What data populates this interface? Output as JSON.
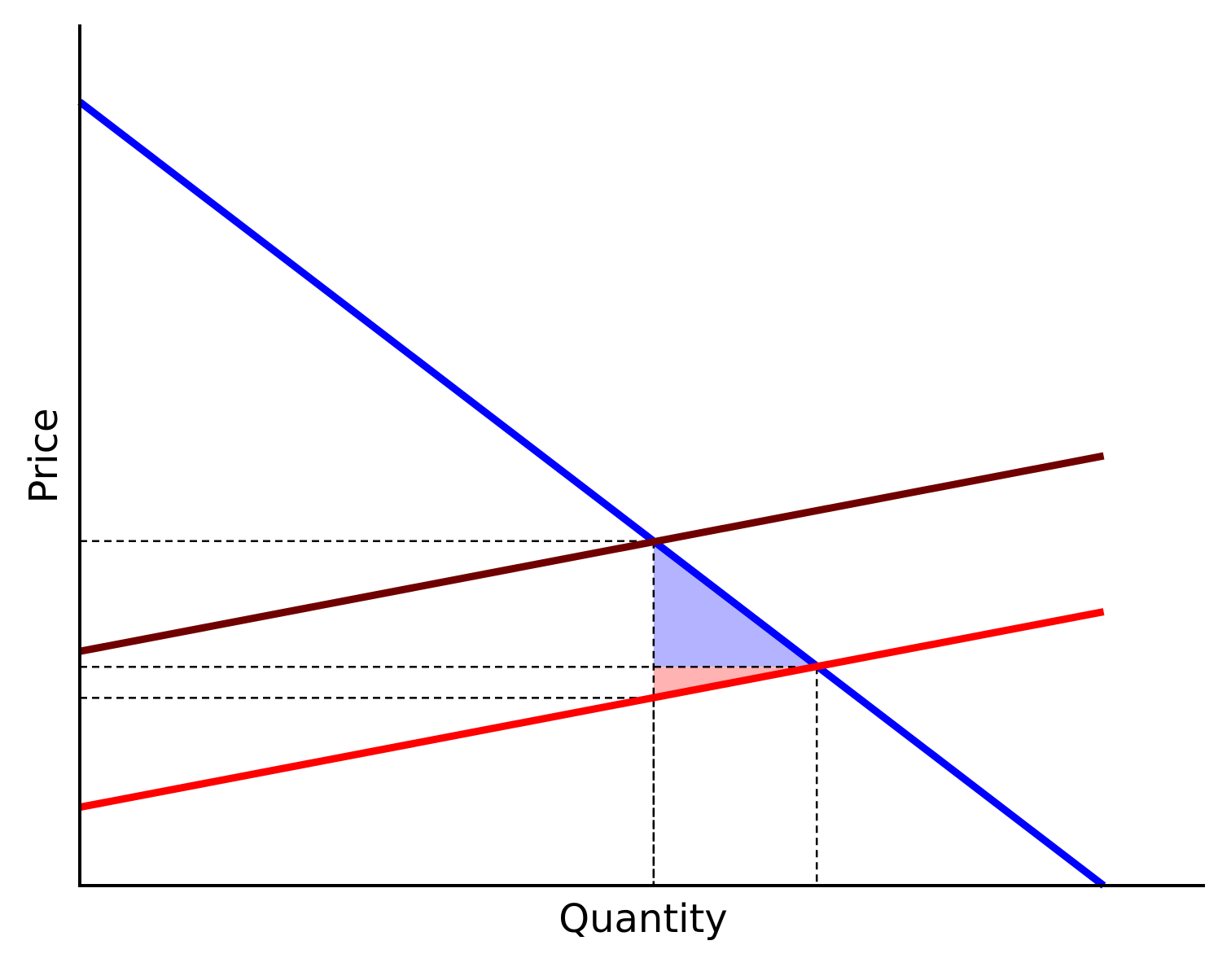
{
  "chart_data": {
    "type": "line",
    "xlabel": "Quantity",
    "ylabel": "Price",
    "xlim": [
      0,
      100
    ],
    "ylim": [
      0,
      100
    ],
    "series": [
      {
        "color": "#0000ff",
        "x": [
          0,
          91
        ],
        "values": [
          91,
          0
        ]
      },
      {
        "color": "#700000",
        "x": [
          0,
          91
        ],
        "values": [
          27.2,
          49.9
        ]
      },
      {
        "color": "#ff0000",
        "x": [
          0,
          91
        ],
        "values": [
          9.1,
          31.8
        ]
      }
    ],
    "points": [
      {
        "x": 51,
        "y": 40
      },
      {
        "x": 65.5,
        "y": 25.4
      },
      {
        "x": 51,
        "y": 21.8
      }
    ],
    "areas": [
      {
        "color": "#b3b3ff",
        "x": [
          51,
          51,
          65.5
        ],
        "values": [
          40,
          25.4,
          25.4
        ]
      },
      {
        "color": "#ffb3b3",
        "x": [
          51,
          65.5,
          51
        ],
        "values": [
          25.4,
          25.4,
          21.8
        ]
      }
    ]
  }
}
